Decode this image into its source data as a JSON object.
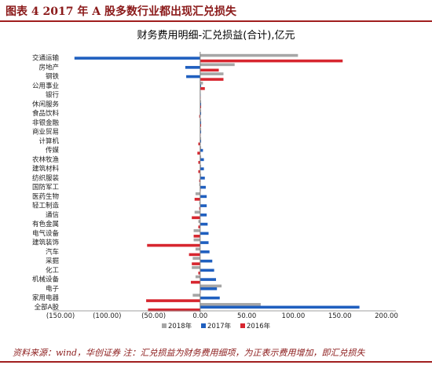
{
  "figure": {
    "title": "图表 4   2017 年 A 股多数行业都出现汇兑损失",
    "source": "资料来源：wind，华创证券   注：汇兑损益为财务费用细项，为正表示费用增加，即汇兑损失"
  },
  "colors": {
    "s2018": "#a6a6a6",
    "s2017": "#1f5fbf",
    "s2016": "#d7262f",
    "brand": "#8b1a1a"
  },
  "chart_data": {
    "type": "bar",
    "orientation": "horizontal",
    "title": "财务费用明细-汇兑损益(合计),亿元",
    "xlim": [
      -150,
      200
    ],
    "x_ticks": [
      -150,
      -100,
      -50,
      0,
      50,
      100,
      150,
      200
    ],
    "x_tick_labels": [
      "(150.00)",
      "(100.00)",
      "(50.00)",
      "0.00",
      "50.00",
      "100.00",
      "150.00",
      "200.00"
    ],
    "legend_position": "bottom",
    "grid": false,
    "categories": [
      "交通运输",
      "房地产",
      "钢铁",
      "公用事业",
      "银行",
      "休闲服务",
      "食品饮料",
      "非银金融",
      "商业贸易",
      "计算机",
      "传媒",
      "农林牧渔",
      "建筑材料",
      "纺织服装",
      "国防军工",
      "医药生物",
      "轻工制造",
      "通信",
      "有色金属",
      "电气设备",
      "建筑装饰",
      "汽车",
      "采掘",
      "化工",
      "机械设备",
      "电子",
      "家用电器",
      "全部A股"
    ],
    "series": [
      {
        "name": "2018年",
        "color": "#a6a6a6",
        "values": [
          105,
          37,
          25,
          3,
          0,
          1,
          1,
          1,
          1,
          1,
          1,
          1,
          1,
          1,
          -1,
          -5,
          -1,
          -6,
          -2,
          -7,
          -7,
          -5,
          -8,
          -9,
          -5,
          23,
          -8,
          65
        ]
      },
      {
        "name": "2017年",
        "color": "#1f5fbf",
        "values": [
          -135,
          -16,
          -15,
          1,
          0,
          1,
          1,
          1,
          1,
          1,
          3,
          4,
          4,
          5,
          6,
          7,
          7,
          7,
          8,
          9,
          9,
          10,
          13,
          15,
          17,
          18,
          21,
          171
        ]
      },
      {
        "name": "2016年",
        "color": "#d7262f",
        "values": [
          153,
          20,
          25,
          5,
          0,
          1,
          -1,
          1,
          0,
          -2,
          -3,
          -2,
          -2,
          -1,
          0,
          -6,
          -1,
          -9,
          -2,
          -7,
          -57,
          -12,
          -9,
          -2,
          -10,
          0,
          -58,
          -56
        ]
      }
    ]
  }
}
